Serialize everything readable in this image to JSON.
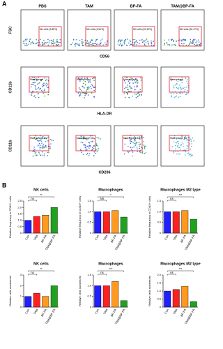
{
  "panel_a": {
    "label": "A",
    "columns": [
      "PBS",
      "TAM",
      "BP-FA",
      "TAM@BP-FA"
    ],
    "rows": [
      {
        "y_label": "FSC",
        "x_label": "CD56",
        "gates": [
          "NK cells (3.85%)",
          "NK cells (4.61%)",
          "NK cells (20.40%)",
          "NK cells (32.47%)"
        ]
      },
      {
        "y_label": "CD11b",
        "x_label": "HLA-DR",
        "gates": [
          "Macrophage",
          "Macrophage",
          "Macrophage",
          "Macrophage"
        ]
      },
      {
        "y_label": "CD11b",
        "x_label": "CD206",
        "gates": [
          "Macrophage M2",
          "Macrophage M2",
          "Macrophage M2",
          "Macrophage M2"
        ]
      }
    ]
  },
  "panel_b_label": "B",
  "chart_data": [
    {
      "type": "bar",
      "title": "NK cells",
      "y_label": "Relative frequency in CD45+ cells",
      "categories": [
        "Con",
        "TAM",
        "BP-FA",
        "TAM@BP-FA"
      ],
      "values": [
        1.0,
        1.3,
        1.4,
        2.0
      ],
      "colors": [
        "#1f1fff",
        "#ff2020",
        "#ff9a1f",
        "#1fa31f"
      ],
      "ylim": [
        0,
        2.5
      ],
      "yticks": [
        0,
        0.5,
        {
          "value": 1,
          "label": "1.0"
        },
        1.5,
        {
          "value": 2,
          "label": "2.0"
        },
        2.5
      ],
      "annotations": [
        "ns",
        "**"
      ]
    },
    {
      "type": "bar",
      "title": "Macrophages",
      "y_label": "Relative frequency in CD45+ cells",
      "categories": [
        "Con",
        "TAM",
        "BP-FA",
        "TAM@BP-FA"
      ],
      "values": [
        1.0,
        1.0,
        1.05,
        0.75
      ],
      "colors": [
        "#1f1fff",
        "#ff2020",
        "#ff9a1f",
        "#1fa31f"
      ],
      "ylim": [
        0,
        1.5
      ],
      "yticks": [
        0,
        0.5,
        {
          "value": 1,
          "label": "1.0"
        },
        1.5
      ],
      "annotations": [
        "NS",
        "*"
      ]
    },
    {
      "type": "bar",
      "title": "Macrophages M2 type",
      "y_label": "Relative frequency in CD45+ cells",
      "categories": [
        "Con",
        "TAM",
        "BP-FA",
        "TAM@BP-FA"
      ],
      "values": [
        1.0,
        1.0,
        1.05,
        0.65
      ],
      "colors": [
        "#1f1fff",
        "#ff2020",
        "#ff9a1f",
        "#1fa31f"
      ],
      "ylim": [
        0,
        1.5
      ],
      "yticks": [
        0,
        0.5,
        {
          "value": 1,
          "label": "1.0"
        },
        1.5
      ],
      "annotations": [
        "ns",
        "***"
      ]
    },
    {
      "type": "bar",
      "title": "NK cells",
      "y_label": "Relative cells number/ml",
      "categories": [
        "Con",
        "TAM",
        "BP-FA",
        "TAM@BP-FA"
      ],
      "values": [
        1.0,
        1.3,
        1.0,
        2.0
      ],
      "colors": [
        "#1f1fff",
        "#ff2020",
        "#ff9a1f",
        "#1fa31f"
      ],
      "ylim": [
        0,
        3
      ],
      "yticks": [
        0,
        1,
        2,
        3
      ],
      "annotations": [
        "ns",
        "**"
      ]
    },
    {
      "type": "bar",
      "title": "Macrophages",
      "y_label": "Relative cells number/ml",
      "categories": [
        "Con",
        "TAM",
        "BP-FA",
        "TAM@BP-FA"
      ],
      "values": [
        1.0,
        1.0,
        1.2,
        0.3
      ],
      "colors": [
        "#1f1fff",
        "#ff2020",
        "#ff9a1f",
        "#1fa31f"
      ],
      "ylim": [
        0,
        1.5
      ],
      "yticks": [
        0,
        0.5,
        {
          "value": 1,
          "label": "1.0"
        },
        1.5
      ],
      "annotations": [
        "ns",
        "***"
      ]
    },
    {
      "type": "bar",
      "title": "Macrophages M2 type",
      "y_label": "Relative cells number/ml",
      "categories": [
        "Con",
        "TAM",
        "BP-FA",
        "TAM@BP-FA"
      ],
      "values": [
        1.0,
        1.1,
        1.3,
        0.35
      ],
      "colors": [
        "#1f1fff",
        "#ff2020",
        "#ff9a1f",
        "#1fa31f"
      ],
      "ylim": [
        0,
        2
      ],
      "yticks": [
        0,
        0.5,
        {
          "value": 1,
          "label": "1.0"
        },
        1.5,
        {
          "value": 2,
          "label": "2.0"
        }
      ],
      "annotations": [
        "ns",
        "***"
      ]
    }
  ]
}
